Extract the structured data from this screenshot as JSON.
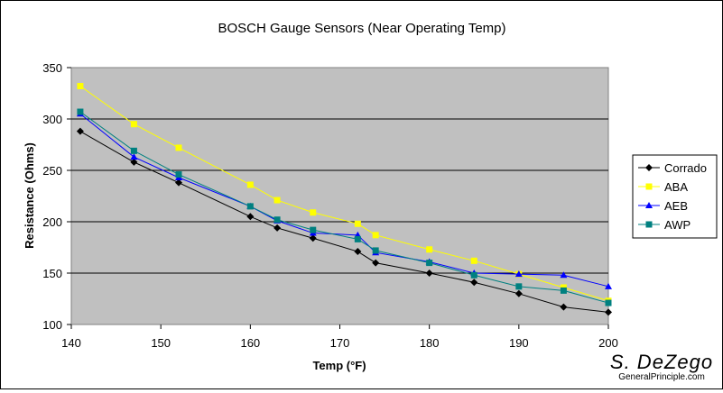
{
  "chart_data": {
    "type": "line",
    "title": "BOSCH Gauge Sensors (Near Operating Temp)",
    "xlabel": "Temp (°F)",
    "ylabel": "Resistance (Ohms)",
    "xlim": [
      140,
      200
    ],
    "ylim": [
      100,
      350
    ],
    "x_ticks": [
      "140",
      "150",
      "160",
      "170",
      "180",
      "190",
      "200"
    ],
    "y_ticks": [
      "100",
      "150",
      "200",
      "250",
      "300",
      "350"
    ],
    "grid": "horizontal",
    "legend_position": "right",
    "plot_background": "#c0c0c0",
    "series": [
      {
        "name": "Corrado",
        "color": "#000000",
        "marker": "diamond",
        "points": [
          [
            141,
            288
          ],
          [
            147,
            258
          ],
          [
            152,
            238
          ],
          [
            160,
            205
          ],
          [
            163,
            194
          ],
          [
            167,
            184
          ],
          [
            172,
            171
          ],
          [
            174,
            160
          ],
          [
            180,
            150
          ],
          [
            185,
            141
          ],
          [
            190,
            130
          ],
          [
            195,
            117
          ],
          [
            200,
            112
          ]
        ]
      },
      {
        "name": "ABA",
        "color": "#ffff00",
        "marker": "square",
        "points": [
          [
            141,
            332
          ],
          [
            147,
            295
          ],
          [
            152,
            272
          ],
          [
            160,
            236
          ],
          [
            163,
            221
          ],
          [
            167,
            209
          ],
          [
            172,
            198
          ],
          [
            174,
            187
          ],
          [
            180,
            173
          ],
          [
            185,
            162
          ],
          [
            190,
            149
          ],
          [
            195,
            136
          ],
          [
            200,
            123
          ]
        ]
      },
      {
        "name": "AEB",
        "color": "#0000ff",
        "marker": "triangle",
        "points": [
          [
            141,
            305
          ],
          [
            147,
            263
          ],
          [
            152,
            243
          ],
          [
            160,
            215
          ],
          [
            163,
            201
          ],
          [
            167,
            189
          ],
          [
            172,
            187
          ],
          [
            174,
            170
          ],
          [
            180,
            161
          ],
          [
            185,
            150
          ],
          [
            190,
            149
          ],
          [
            195,
            148
          ],
          [
            200,
            137
          ]
        ]
      },
      {
        "name": "AWP",
        "color": "#008080",
        "marker": "square",
        "points": [
          [
            141,
            307
          ],
          [
            147,
            269
          ],
          [
            152,
            246
          ],
          [
            160,
            215
          ],
          [
            163,
            202
          ],
          [
            167,
            192
          ],
          [
            172,
            183
          ],
          [
            174,
            172
          ],
          [
            180,
            160
          ],
          [
            185,
            148
          ],
          [
            190,
            137
          ],
          [
            195,
            133
          ],
          [
            200,
            121
          ]
        ]
      }
    ]
  },
  "signature": {
    "name": "S. DeZego",
    "site": "GeneralPrinciple.com"
  }
}
